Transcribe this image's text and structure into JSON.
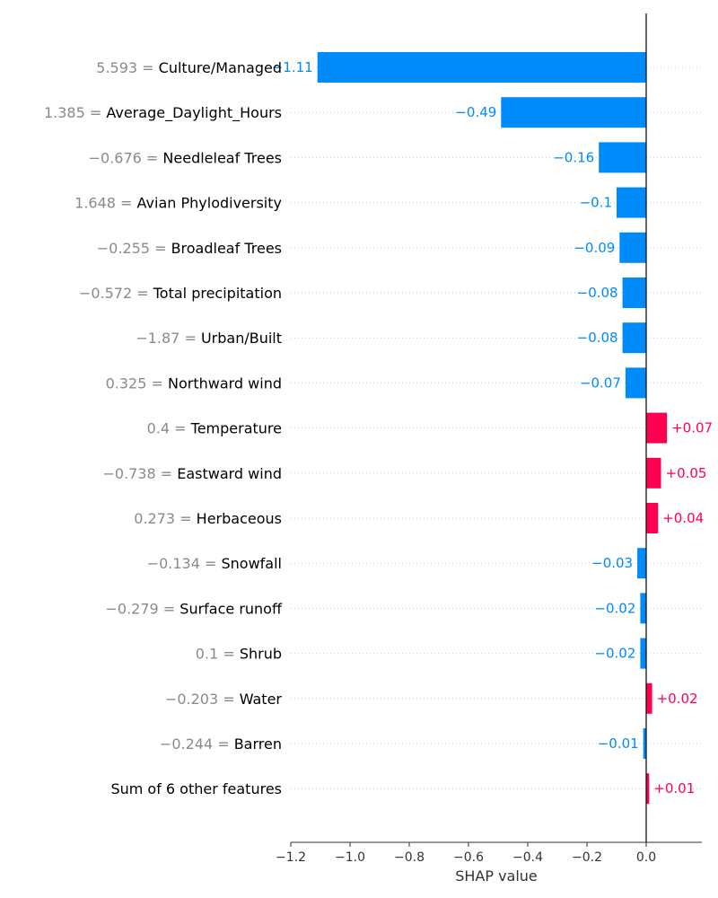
{
  "chart_data": {
    "type": "bar",
    "orientation": "horizontal",
    "xlabel": "SHAP value",
    "xlim": [
      -1.23,
      0.18
    ],
    "xticks": [
      -1.2,
      -1.0,
      -0.8,
      -0.6,
      -0.4,
      -0.2,
      0.0
    ],
    "xtick_labels": [
      "−1.2",
      "−1.0",
      "−0.8",
      "−0.6",
      "−0.4",
      "−0.2",
      "0.0"
    ],
    "grid": "dotted horizontal",
    "colors": {
      "negative": "#008bfb",
      "positive": "#ff0051"
    },
    "features": [
      {
        "value_text": "5.593 =",
        "name": "Culture/Managed",
        "shap": -1.11,
        "label": "−1.11"
      },
      {
        "value_text": "1.385 =",
        "name": "Average_Daylight_Hours",
        "shap": -0.49,
        "label": "−0.49"
      },
      {
        "value_text": "−0.676 =",
        "name": "Needleleaf Trees",
        "shap": -0.16,
        "label": "−0.16"
      },
      {
        "value_text": "1.648 =",
        "name": "Avian Phylodiversity",
        "shap": -0.1,
        "label": "−0.1"
      },
      {
        "value_text": "−0.255 =",
        "name": "Broadleaf Trees",
        "shap": -0.09,
        "label": "−0.09"
      },
      {
        "value_text": "−0.572 =",
        "name": "Total precipitation",
        "shap": -0.08,
        "label": "−0.08"
      },
      {
        "value_text": "−1.87 =",
        "name": "Urban/Built",
        "shap": -0.08,
        "label": "−0.08"
      },
      {
        "value_text": "0.325 =",
        "name": "Northward wind",
        "shap": -0.07,
        "label": "−0.07"
      },
      {
        "value_text": "0.4 =",
        "name": "Temperature",
        "shap": 0.07,
        "label": "+0.07"
      },
      {
        "value_text": "−0.738 =",
        "name": "Eastward wind",
        "shap": 0.05,
        "label": "+0.05"
      },
      {
        "value_text": "0.273 =",
        "name": "Herbaceous",
        "shap": 0.04,
        "label": "+0.04"
      },
      {
        "value_text": "−0.134 =",
        "name": "Snowfall",
        "shap": -0.03,
        "label": "−0.03"
      },
      {
        "value_text": "−0.279 =",
        "name": "Surface runoff",
        "shap": -0.02,
        "label": "−0.02"
      },
      {
        "value_text": "0.1 =",
        "name": "Shrub",
        "shap": -0.02,
        "label": "−0.02"
      },
      {
        "value_text": "−0.203 =",
        "name": "Water",
        "shap": 0.02,
        "label": "+0.02"
      },
      {
        "value_text": "−0.244 =",
        "name": "Barren",
        "shap": -0.01,
        "label": "−0.01"
      },
      {
        "value_text": "",
        "name": "Sum of 6 other features",
        "shap": 0.01,
        "label": "+0.01"
      }
    ]
  }
}
